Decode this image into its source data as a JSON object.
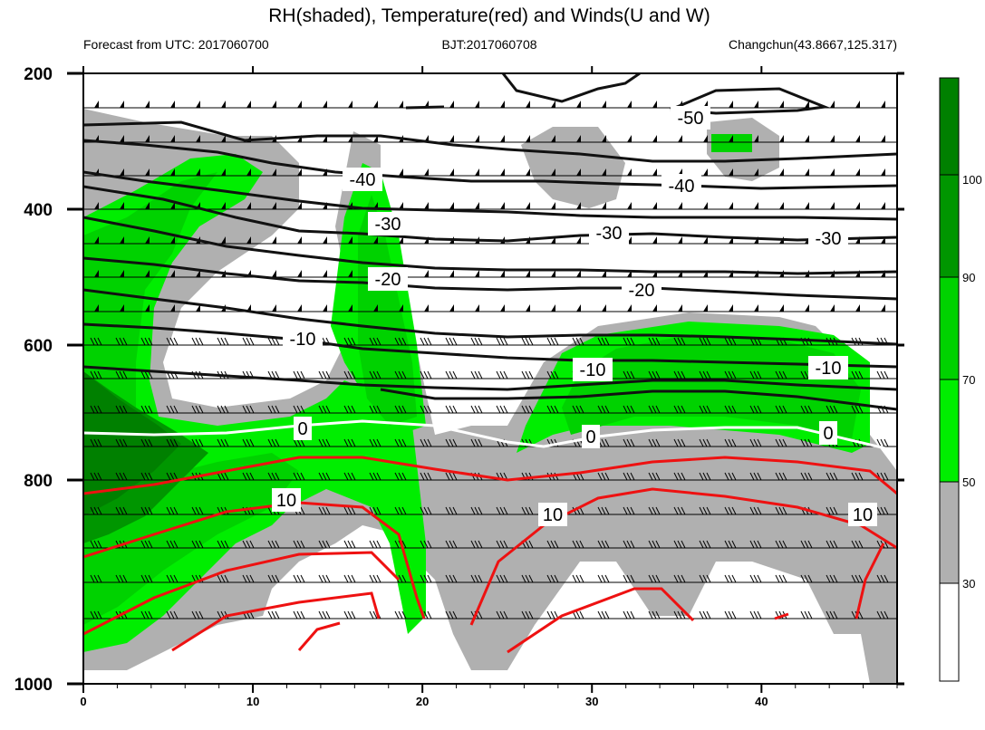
{
  "title": "RH(shaded), Temperature(red) and Winds(U and W)",
  "subtitle_left": "Forecast from UTC: 2017060700",
  "subtitle_center": "BJT:2017060708",
  "subtitle_right": "Changchun(43.8667,125.317)",
  "colors": {
    "rh_30_50": "#b0b0b0",
    "rh_50_70": "#00ee00",
    "rh_70_90": "#00d200",
    "rh_90_100": "#009600",
    "rh_above_100": "#008000",
    "temp_positive": "#ee1111",
    "temp_negative": "#111111",
    "temp_zero": "#ffffff"
  },
  "chart_data": {
    "type": "heatmap",
    "title": "RH(shaded), Temperature(red) and Winds(U and W)",
    "xlabel": "",
    "ylabel": "",
    "xlim": [
      0,
      48
    ],
    "ylim": [
      1000,
      200
    ],
    "y_scale": "pressure (log-like), inverted",
    "x_ticks": [
      0,
      10,
      20,
      30,
      40
    ],
    "y_ticks": [
      200,
      400,
      600,
      800,
      1000
    ],
    "colorbar": {
      "levels": [
        30,
        50,
        70,
        90,
        100
      ],
      "labels": [
        "30",
        "50",
        "70",
        "90",
        "100"
      ],
      "placement": "right"
    },
    "rh_regions": [
      {
        "name": "lower-left moist layer",
        "rh_min": 50,
        "x_range": [
          0,
          22
        ],
        "p_range": [
          600,
          975
        ]
      },
      {
        "name": "lower-left core",
        "rh_min": 90,
        "x_range": [
          0,
          7
        ],
        "p_range": [
          640,
          850
        ]
      },
      {
        "name": "upper-left moist tongue",
        "rh_min": 70,
        "x_range": [
          0,
          11
        ],
        "p_range": [
          330,
          700
        ]
      },
      {
        "name": "mid-level moist column",
        "rh_min": 70,
        "x_range": [
          15,
          20
        ],
        "p_range": [
          340,
          750
        ]
      },
      {
        "name": "right mid-level moist layer",
        "rh_min": 70,
        "x_range": [
          26,
          46
        ],
        "p_range": [
          570,
          760
        ]
      },
      {
        "name": "upper-right patch",
        "rh_min": 70,
        "x_range": [
          37,
          40
        ],
        "p_range": [
          290,
          310
        ]
      }
    ],
    "temperature_contours": [
      {
        "value": -50,
        "label": "-50",
        "label_pos": [
          35,
          272
        ]
      },
      {
        "value": -40,
        "label": "-40",
        "label_pos": [
          16,
          355
        ]
      },
      {
        "value": -40,
        "label": "-40",
        "label_pos": [
          34,
          370
        ]
      },
      {
        "value": -30,
        "label": "-30",
        "label_pos": [
          18,
          420
        ]
      },
      {
        "value": -30,
        "label": "-30",
        "label_pos": [
          31,
          432
        ]
      },
      {
        "value": -30,
        "label": "-30",
        "label_pos": [
          44,
          440
        ]
      },
      {
        "value": -20,
        "label": "-20",
        "label_pos": [
          18,
          512
        ]
      },
      {
        "value": -20,
        "label": "-20",
        "label_pos": [
          32,
          527
        ]
      },
      {
        "value": -10,
        "label": "-10",
        "label_pos": [
          13,
          590
        ]
      },
      {
        "value": -10,
        "label": "-10",
        "label_pos": [
          30,
          632
        ]
      },
      {
        "value": -10,
        "label": "-10",
        "label_pos": [
          44,
          628
        ]
      },
      {
        "value": 0,
        "label": "0",
        "label_pos": [
          13,
          750
        ]
      },
      {
        "value": 0,
        "label": "0",
        "label_pos": [
          30,
          769
        ]
      },
      {
        "value": 0,
        "label": "0",
        "label_pos": [
          44,
          765
        ]
      },
      {
        "value": 10,
        "label": "10",
        "label_pos": [
          12,
          836
        ]
      },
      {
        "value": 10,
        "label": "10",
        "label_pos": [
          28,
          857
        ]
      },
      {
        "value": 10,
        "label": "10",
        "label_pos": [
          46,
          847
        ]
      }
    ],
    "wind_barb_levels": [
      250,
      300,
      350,
      400,
      450,
      500,
      550,
      600,
      650,
      700,
      750,
      800,
      850,
      900,
      950,
      975
    ]
  }
}
